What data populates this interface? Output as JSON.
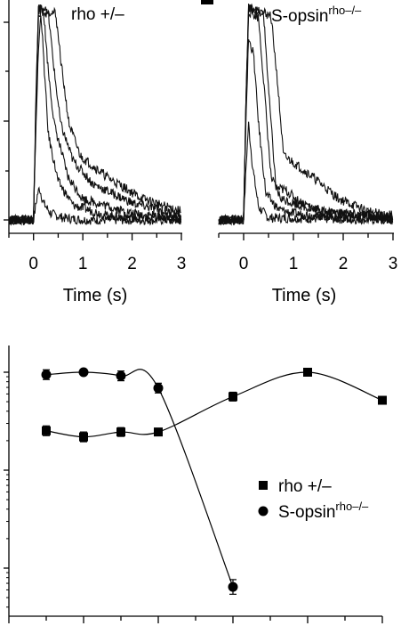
{
  "chart_data": [
    {
      "type": "line",
      "title": "rho +/–",
      "xlabel": "Time (s)",
      "xticks": [
        "0",
        "1",
        "2",
        "3"
      ],
      "xlim": [
        -0.5,
        3.0
      ],
      "ylim": [
        0,
        1
      ],
      "series": [
        {
          "values": [
            [
              -0.5,
              0.0
            ],
            [
              0.0,
              0.0
            ],
            [
              0.08,
              0.12
            ],
            [
              0.12,
              0.15
            ],
            [
              0.2,
              0.08
            ],
            [
              0.35,
              0.03
            ],
            [
              0.6,
              0.01
            ],
            [
              1.0,
              0.0
            ],
            [
              3.0,
              0.0
            ]
          ]
        },
        {
          "values": [
            [
              -0.5,
              0.0
            ],
            [
              0.0,
              0.0
            ],
            [
              0.05,
              0.45
            ],
            [
              0.1,
              0.8
            ],
            [
              0.15,
              0.98
            ],
            [
              0.22,
              0.7
            ],
            [
              0.3,
              0.4
            ],
            [
              0.5,
              0.18
            ],
            [
              0.8,
              0.07
            ],
            [
              1.5,
              0.02
            ],
            [
              3.0,
              0.0
            ]
          ]
        },
        {
          "values": [
            [
              -0.5,
              0.0
            ],
            [
              0.0,
              0.0
            ],
            [
              0.05,
              0.5
            ],
            [
              0.1,
              0.97
            ],
            [
              0.2,
              0.99
            ],
            [
              0.3,
              0.7
            ],
            [
              0.42,
              0.45
            ],
            [
              0.7,
              0.2
            ],
            [
              1.0,
              0.1
            ],
            [
              2.0,
              0.03
            ],
            [
              3.0,
              0.01
            ]
          ]
        },
        {
          "values": [
            [
              -0.5,
              0.0
            ],
            [
              0.0,
              0.0
            ],
            [
              0.05,
              0.55
            ],
            [
              0.1,
              0.99
            ],
            [
              0.3,
              0.97
            ],
            [
              0.42,
              0.7
            ],
            [
              0.55,
              0.45
            ],
            [
              0.8,
              0.28
            ],
            [
              1.2,
              0.17
            ],
            [
              2.0,
              0.08
            ],
            [
              3.0,
              0.02
            ]
          ]
        },
        {
          "values": [
            [
              -0.5,
              0.0
            ],
            [
              0.0,
              0.0
            ],
            [
              0.05,
              0.6
            ],
            [
              0.1,
              1.0
            ],
            [
              0.45,
              0.97
            ],
            [
              0.58,
              0.7
            ],
            [
              0.72,
              0.45
            ],
            [
              0.95,
              0.3
            ],
            [
              1.5,
              0.2
            ],
            [
              2.2,
              0.1
            ],
            [
              3.0,
              0.04
            ]
          ]
        }
      ]
    },
    {
      "type": "line",
      "title": "S-opsin",
      "title_superscript": "rho–/–",
      "xlabel": "Time (s)",
      "xticks": [
        "0",
        "1",
        "2",
        "3"
      ],
      "xlim": [
        -0.5,
        3.0
      ],
      "ylim": [
        0,
        1
      ],
      "series": [
        {
          "values": [
            [
              -0.5,
              0.0
            ],
            [
              0.0,
              0.0
            ],
            [
              0.06,
              0.3
            ],
            [
              0.1,
              0.45
            ],
            [
              0.18,
              0.25
            ],
            [
              0.3,
              0.06
            ],
            [
              0.5,
              0.01
            ],
            [
              3.0,
              0.0
            ]
          ]
        },
        {
          "values": [
            [
              -0.5,
              0.0
            ],
            [
              0.0,
              0.0
            ],
            [
              0.05,
              0.5
            ],
            [
              0.1,
              0.85
            ],
            [
              0.2,
              0.78
            ],
            [
              0.3,
              0.45
            ],
            [
              0.45,
              0.12
            ],
            [
              0.7,
              0.05
            ],
            [
              1.0,
              0.03
            ],
            [
              2.0,
              0.01
            ],
            [
              3.0,
              0.0
            ]
          ]
        },
        {
          "values": [
            [
              -0.5,
              0.0
            ],
            [
              0.0,
              0.0
            ],
            [
              0.05,
              0.55
            ],
            [
              0.1,
              0.98
            ],
            [
              0.3,
              0.95
            ],
            [
              0.42,
              0.6
            ],
            [
              0.55,
              0.2
            ],
            [
              0.75,
              0.1
            ],
            [
              1.0,
              0.08
            ],
            [
              1.5,
              0.04
            ],
            [
              3.0,
              0.01
            ]
          ]
        },
        {
          "values": [
            [
              -0.5,
              0.0
            ],
            [
              0.0,
              0.0
            ],
            [
              0.05,
              0.6
            ],
            [
              0.1,
              1.0
            ],
            [
              0.4,
              0.97
            ],
            [
              0.52,
              0.55
            ],
            [
              0.65,
              0.15
            ],
            [
              0.85,
              0.14
            ],
            [
              1.1,
              0.09
            ],
            [
              1.6,
              0.04
            ],
            [
              3.0,
              0.01
            ]
          ]
        },
        {
          "values": [
            [
              -0.5,
              0.0
            ],
            [
              0.0,
              0.0
            ],
            [
              0.05,
              0.6
            ],
            [
              0.1,
              1.0
            ],
            [
              0.55,
              0.96
            ],
            [
              0.68,
              0.65
            ],
            [
              0.8,
              0.3
            ],
            [
              1.0,
              0.27
            ],
            [
              1.4,
              0.2
            ],
            [
              1.9,
              0.1
            ],
            [
              2.5,
              0.04
            ],
            [
              3.0,
              0.02
            ]
          ]
        }
      ]
    },
    {
      "type": "scatter",
      "xlim": [
        0,
        10
      ],
      "ylim": [
        0,
        1
      ],
      "legend": "right",
      "series": [
        {
          "name": "rho +/–",
          "marker": "square",
          "x": [
            1,
            2,
            3,
            4,
            6,
            8,
            10
          ],
          "y": [
            0.76,
            0.735,
            0.755,
            0.755,
            0.9,
            1.0,
            0.885
          ],
          "err": [
            0.02,
            0.02,
            0.018,
            0.015,
            0.018,
            0.01,
            0.015
          ]
        },
        {
          "name": "S-opsin",
          "name_superscript": "rho–/–",
          "marker": "circle",
          "x": [
            1,
            2,
            3,
            4,
            6
          ],
          "y": [
            0.99,
            1.0,
            0.985,
            0.935,
            0.12
          ],
          "err": [
            0.02,
            0.01,
            0.02,
            0.02,
            0.03
          ]
        }
      ]
    }
  ]
}
